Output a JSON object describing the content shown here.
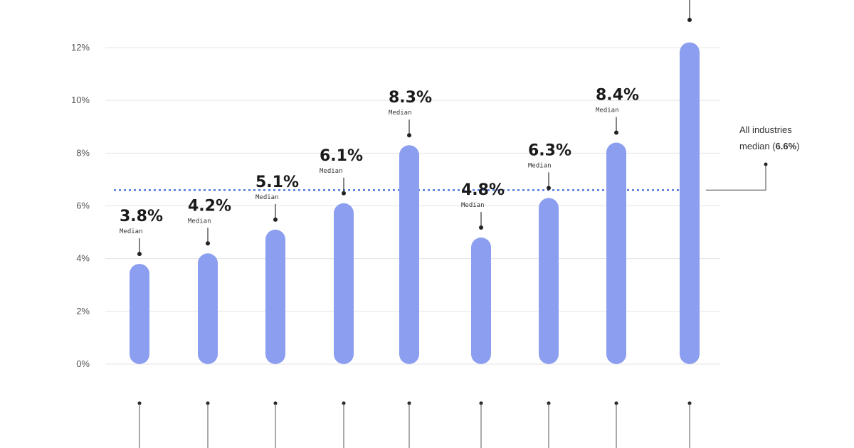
{
  "chart_data": {
    "type": "bar",
    "title": "",
    "xlabel": "",
    "ylabel": "",
    "ylim": [
      0,
      12
    ],
    "yticks": [
      {
        "value": 0,
        "label": "0%"
      },
      {
        "value": 2,
        "label": "2%"
      },
      {
        "value": 4,
        "label": "4%"
      },
      {
        "value": 6,
        "label": "6%"
      },
      {
        "value": 8,
        "label": "8%"
      },
      {
        "value": 10,
        "label": "10%"
      },
      {
        "value": 12,
        "label": "12%"
      }
    ],
    "grid": true,
    "series": [
      {
        "values": [
          3.8,
          4.2,
          5.1,
          6.1,
          8.3,
          4.8,
          6.3,
          8.4,
          12.2
        ],
        "labels": [
          "3.8%",
          "4.2%",
          "5.1%",
          "6.1%",
          "8.3%",
          "4.8%",
          "6.3%",
          "8.4%",
          ""
        ],
        "sublabel": "Median",
        "color": "#8c9eef"
      }
    ],
    "reference_line": {
      "value": 6.6,
      "text_line1": "All industries",
      "text_line2_prefix": "median (",
      "text_value": "6.6%",
      "text_line2_suffix": ")",
      "color": "#2f5fd8",
      "style": "dotted"
    }
  }
}
